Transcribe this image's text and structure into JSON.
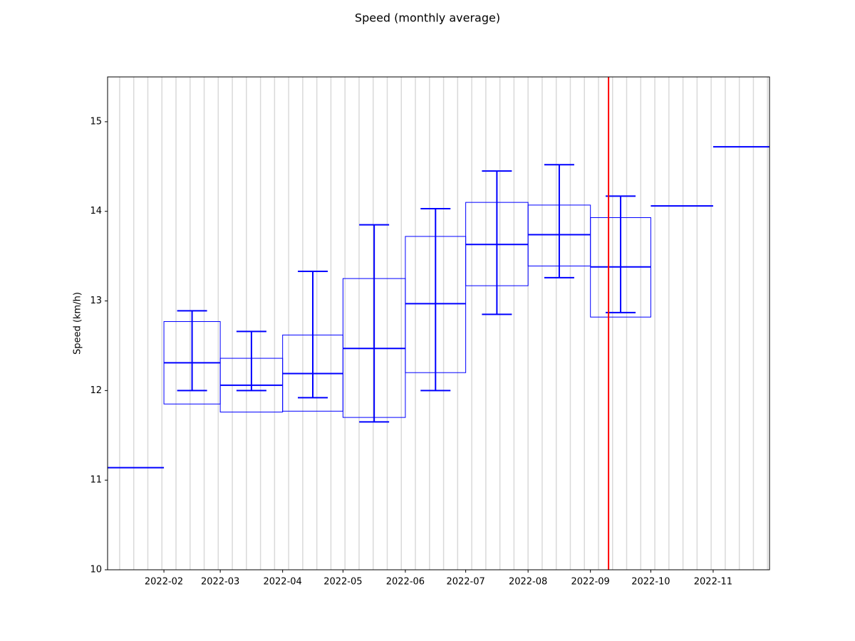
{
  "chart_data": {
    "type": "boxplot",
    "title": "Speed (monthly average)",
    "y_label": "Speed (km/h)",
    "x": [
      "2022-01",
      "2022-02",
      "2022-03",
      "2022-04",
      "2022-05",
      "2022-06",
      "2022-07",
      "2022-08",
      "2022-09",
      "2022-10",
      "2022-11"
    ],
    "median": [
      11.14,
      12.31,
      12.06,
      12.19,
      12.47,
      12.97,
      13.63,
      13.74,
      13.38,
      14.06,
      14.72
    ],
    "q1": [
      null,
      11.85,
      11.76,
      11.77,
      11.7,
      12.2,
      13.17,
      13.39,
      12.82,
      null,
      null
    ],
    "q3": [
      null,
      12.77,
      12.36,
      12.62,
      13.25,
      13.72,
      14.1,
      14.07,
      13.93,
      null,
      null
    ],
    "min": [
      null,
      12.0,
      12.0,
      11.92,
      11.65,
      12.0,
      12.85,
      13.26,
      12.87,
      null,
      null
    ],
    "max": [
      null,
      12.89,
      12.66,
      13.33,
      13.85,
      14.03,
      14.45,
      14.52,
      14.17,
      null,
      null
    ],
    "color": "#0000ff",
    "xlim": [
      "2022-01-04",
      "2022-11-29"
    ],
    "xticks": [
      "2022-02",
      "2022-03",
      "2022-04",
      "2022-05",
      "2022-06",
      "2022-07",
      "2022-08",
      "2022-09",
      "2022-10",
      "2022-11"
    ],
    "xgrid": [
      "2022-01-10",
      "2022-01-17",
      "2022-01-24",
      "2022-01-31",
      "2022-02-07",
      "2022-02-14",
      "2022-02-21",
      "2022-02-28",
      "2022-03-07",
      "2022-03-14",
      "2022-03-21",
      "2022-03-28",
      "2022-04-04",
      "2022-04-11",
      "2022-04-18",
      "2022-04-25",
      "2022-05-02",
      "2022-05-09",
      "2022-05-16",
      "2022-05-23",
      "2022-05-30",
      "2022-06-06",
      "2022-06-13",
      "2022-06-20",
      "2022-06-27",
      "2022-07-04",
      "2022-07-11",
      "2022-07-18",
      "2022-07-25",
      "2022-08-01",
      "2022-08-08",
      "2022-08-15",
      "2022-08-22",
      "2022-08-29",
      "2022-09-05",
      "2022-09-12",
      "2022-09-19",
      "2022-09-26",
      "2022-10-03",
      "2022-10-10",
      "2022-10-17",
      "2022-10-24",
      "2022-10-31",
      "2022-11-07",
      "2022-11-14",
      "2022-11-21",
      "2022-11-28"
    ],
    "grid_color": "#d9d9d9",
    "vline": {
      "x": "2022-09-10",
      "color": "#ff0000"
    },
    "ylim": [
      10,
      15.5
    ],
    "yticks": [
      10,
      11,
      12,
      13,
      14,
      15
    ]
  }
}
